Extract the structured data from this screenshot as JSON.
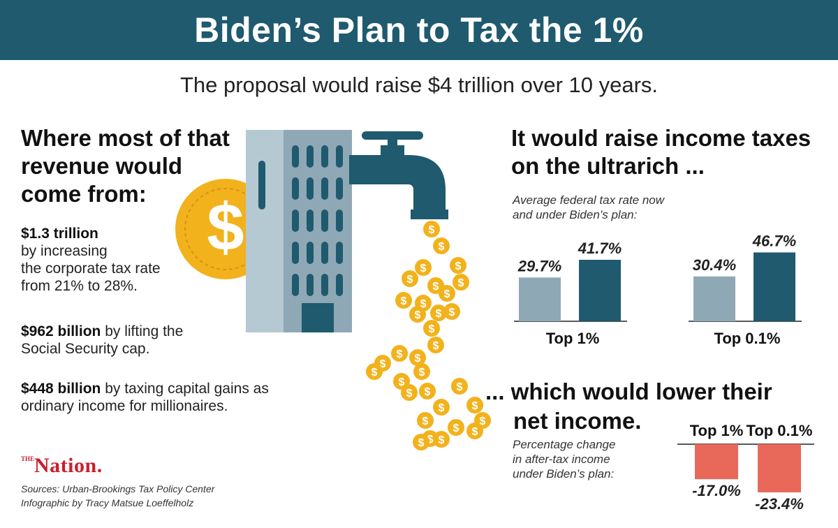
{
  "title": "Biden’s Plan to Tax the 1%",
  "subtitle": "The proposal would raise $4 trillion over 10 years.",
  "left": {
    "heading_lines": [
      "Where most of that",
      "revenue would",
      "come from:"
    ],
    "items": [
      {
        "amount": "$1.3 trillion",
        "lines": [
          "by increasing",
          "the corporate tax rate",
          "from 21% to 28%."
        ]
      },
      {
        "amount": "$962 billion",
        "rest": " by lifting the",
        "lines": [
          "Social Security cap."
        ]
      },
      {
        "amount": "$448 billion",
        "rest": " by taxing capital gains as",
        "lines": [
          "ordinary income for millionaires."
        ]
      }
    ]
  },
  "logo": {
    "the": "THE",
    "name": "Nation."
  },
  "credits": {
    "sources": "Sources: Urban-Brookings Tax Policy Center",
    "author": "Infographic by Tracy Matsue Loeffelholz"
  },
  "illustration": {
    "coin_symbol": "$",
    "icons": [
      "building-icon",
      "faucet-icon",
      "coin-icon"
    ]
  },
  "colors": {
    "banner": "#1f5a6e",
    "now_bar": "#8fa8b6",
    "plan_bar": "#1f5a6e",
    "negative_bar": "#e8695a",
    "coin": "#f2b21c"
  },
  "right": {
    "heading_lines": [
      "It would raise income taxes",
      "on the ultrarich ..."
    ],
    "note_lines": [
      "Average federal tax rate now",
      "and under Biden’s plan:"
    ]
  },
  "bottom": {
    "heading_lines": [
      "... which would lower their",
      "net income."
    ],
    "note_lines": [
      "Percentage change",
      "in after-tax income",
      "under Biden’s plan:"
    ]
  },
  "chart_data": [
    {
      "type": "bar",
      "groups": [
        {
          "name": "Top 1%",
          "values": [
            29.7,
            41.7
          ],
          "labels": [
            "29.7%",
            "41.7%"
          ]
        },
        {
          "name": "Top 0.1%",
          "values": [
            30.4,
            46.7
          ],
          "labels": [
            "30.4%",
            "46.7%"
          ]
        }
      ],
      "series_colors": [
        "#8fa8b6",
        "#1f5a6e"
      ]
    },
    {
      "type": "bar",
      "categories": [
        "Top 1%",
        "Top 0.1%"
      ],
      "values": [
        -17.0,
        -23.4
      ],
      "labels": [
        "-17.0%",
        "-23.4%"
      ]
    }
  ]
}
